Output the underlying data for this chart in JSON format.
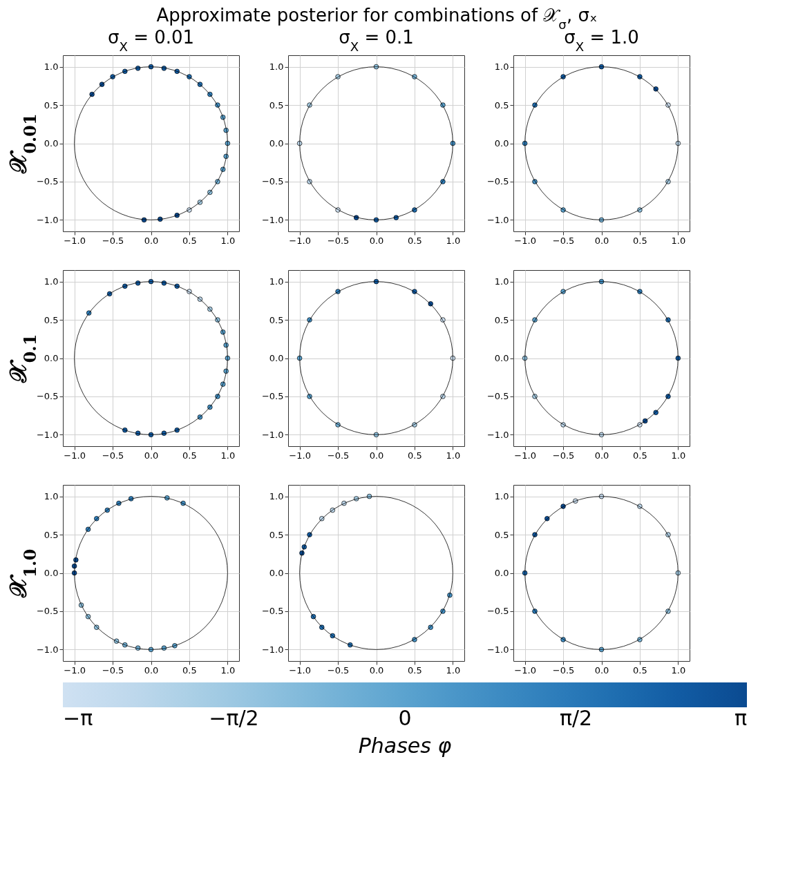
{
  "chart_data": [
    {
      "type": "other",
      "title": "Approximate posterior for combinations of 𝒳$_{σ}$, σₓ"
    },
    {
      "type": "scatter",
      "title": "σ$_{X}$ = 0.01",
      "ylabel": "𝒳$_{0.01}$",
      "xlim": [
        -1.15,
        1.15
      ],
      "ylim": [
        -1.15,
        1.15
      ],
      "xticks": [
        {
          "value": -1,
          "label": "−1.0"
        },
        {
          "value": -0.5,
          "label": "−0.5"
        },
        {
          "value": 0,
          "label": "0.0"
        },
        {
          "value": 0.5,
          "label": "0.5"
        },
        {
          "value": 1,
          "label": "1.0"
        }
      ],
      "yticks": [
        {
          "value": -1,
          "label": "−1.0"
        },
        {
          "value": -0.5,
          "label": "−0.5"
        },
        {
          "value": 0,
          "label": "0.0"
        },
        {
          "value": 0.5,
          "label": "0.5"
        },
        {
          "value": 1,
          "label": "1.0"
        }
      ],
      "grid": true,
      "series": [
        {
          "type": "scatter",
          "marker": "circle",
          "x": [
            -0.77,
            -0.64,
            -0.5,
            -0.34,
            -0.17,
            0,
            0.17,
            0.34,
            0.5,
            0.64,
            0.77,
            0.87,
            0.94,
            0.98,
            1,
            0.98,
            0.94,
            0.87,
            0.77,
            0.64,
            0.5,
            0.34,
            0.12,
            -0.09
          ],
          "values": [
            0.64,
            0.77,
            0.87,
            0.94,
            0.98,
            1,
            0.98,
            0.94,
            0.87,
            0.77,
            0.64,
            0.5,
            0.34,
            0.17,
            0,
            -0.17,
            -0.34,
            -0.5,
            -0.64,
            -0.77,
            -0.87,
            -0.94,
            -0.99,
            -1
          ],
          "colors": [
            "#0a4a90",
            "#0a4a90",
            "#125ca4",
            "#125ca4",
            "#125ca4",
            "#125ca4",
            "#125ca4",
            "#125ca4",
            "#206fb2",
            "#206fb2",
            "#3181bd",
            "#4592c6",
            "#5ba3cf",
            "#5ba3cf",
            "#5ba3cf",
            "#5ba3cf",
            "#5ba3cf",
            "#74b2d7",
            "#8fc1de",
            "#a8cee5",
            "#cfe1f2",
            "#0a4a90",
            "#0a4a90",
            "#0a4a90"
          ]
        }
      ]
    },
    {
      "type": "scatter",
      "title": "σ$_{X}$ = 0.1",
      "xlim": [
        -1.15,
        1.15
      ],
      "ylim": [
        -1.15,
        1.15
      ],
      "xticks": [
        {
          "value": -1,
          "label": "−1.0"
        },
        {
          "value": -0.5,
          "label": "−0.5"
        },
        {
          "value": 0,
          "label": "0.0"
        },
        {
          "value": 0.5,
          "label": "0.5"
        },
        {
          "value": 1,
          "label": "1.0"
        }
      ],
      "yticks": [
        {
          "value": -1,
          "label": "−1.0"
        },
        {
          "value": -0.5,
          "label": "−0.5"
        },
        {
          "value": 0,
          "label": "0.0"
        },
        {
          "value": 0.5,
          "label": "0.5"
        },
        {
          "value": 1,
          "label": "1.0"
        }
      ],
      "grid": true,
      "series": [
        {
          "type": "scatter",
          "marker": "circle",
          "x": [
            0,
            -0.5,
            -0.87,
            -1,
            -0.87,
            -0.5,
            -0.26,
            0,
            0.26,
            0.5,
            0.87,
            1,
            0.87,
            0.5
          ],
          "values": [
            1,
            0.87,
            0.5,
            0,
            -0.5,
            -0.87,
            -0.97,
            -1,
            -0.97,
            -0.87,
            -0.5,
            0,
            0.5,
            0.87
          ],
          "colors": [
            "#8fc1de",
            "#a8cee5",
            "#a8cee5",
            "#bed8ec",
            "#bed8ec",
            "#cfe1f2",
            "#0a4a90",
            "#125ca4",
            "#125ca4",
            "#206fb2",
            "#3181bd",
            "#4592c6",
            "#5ba3cf",
            "#74b2d7"
          ]
        }
      ]
    },
    {
      "type": "scatter",
      "title": "σ$_{X}$ = 1.0",
      "xlim": [
        -1.15,
        1.15
      ],
      "ylim": [
        -1.15,
        1.15
      ],
      "xticks": [
        {
          "value": -1,
          "label": "−1.0"
        },
        {
          "value": -0.5,
          "label": "−0.5"
        },
        {
          "value": 0,
          "label": "0.0"
        },
        {
          "value": 0.5,
          "label": "0.5"
        },
        {
          "value": 1,
          "label": "1.0"
        }
      ],
      "yticks": [
        {
          "value": -1,
          "label": "−1.0"
        },
        {
          "value": -0.5,
          "label": "−0.5"
        },
        {
          "value": 0,
          "label": "0.0"
        },
        {
          "value": 0.5,
          "label": "0.5"
        },
        {
          "value": 1,
          "label": "1.0"
        }
      ],
      "grid": true,
      "series": [
        {
          "type": "scatter",
          "marker": "circle",
          "x": [
            0,
            -0.5,
            -0.87,
            -1,
            -0.87,
            -0.5,
            0,
            0.5,
            0.87,
            1,
            0.87,
            0.71,
            0.5
          ],
          "values": [
            1,
            0.87,
            0.5,
            0,
            -0.5,
            -0.87,
            -1,
            -0.87,
            -0.5,
            0,
            0.5,
            0.71,
            0.87
          ],
          "colors": [
            "#125ca4",
            "#125ca4",
            "#206fb2",
            "#3181bd",
            "#4592c6",
            "#5ba3cf",
            "#74b2d7",
            "#8fc1de",
            "#a8cee5",
            "#bed8ec",
            "#cfe1f2",
            "#0a4a90",
            "#125ca4"
          ]
        }
      ]
    },
    {
      "type": "scatter",
      "ylabel": "𝒳$_{0.1}$",
      "xlim": [
        -1.15,
        1.15
      ],
      "ylim": [
        -1.15,
        1.15
      ],
      "xticks": [
        {
          "value": -1,
          "label": "−1.0"
        },
        {
          "value": -0.5,
          "label": "−0.5"
        },
        {
          "value": 0,
          "label": "0.0"
        },
        {
          "value": 0.5,
          "label": "0.5"
        },
        {
          "value": 1,
          "label": "1.0"
        }
      ],
      "yticks": [
        {
          "value": -1,
          "label": "−1.0"
        },
        {
          "value": -0.5,
          "label": "−0.5"
        },
        {
          "value": 0,
          "label": "0.0"
        },
        {
          "value": 0.5,
          "label": "0.5"
        },
        {
          "value": 1,
          "label": "1.0"
        }
      ],
      "grid": true,
      "series": [
        {
          "type": "scatter",
          "marker": "circle",
          "x": [
            -0.81,
            -0.54,
            -0.34,
            -0.17,
            0,
            0.17,
            0.34,
            0.5,
            0.64,
            0.77,
            0.87,
            0.94,
            0.98,
            1,
            0.98,
            0.94,
            0.87,
            0.77,
            0.64,
            0.34,
            0.17,
            0,
            -0.17,
            -0.34
          ],
          "values": [
            0.59,
            0.84,
            0.94,
            0.98,
            1,
            0.98,
            0.94,
            0.87,
            0.77,
            0.64,
            0.5,
            0.34,
            0.17,
            0,
            -0.17,
            -0.34,
            -0.5,
            -0.64,
            -0.77,
            -0.94,
            -0.98,
            -1,
            -0.98,
            -0.94
          ],
          "colors": [
            "#3181bd",
            "#125ca4",
            "#125ca4",
            "#125ca4",
            "#125ca4",
            "#125ca4",
            "#125ca4",
            "#cfe1f2",
            "#bed8ec",
            "#a8cee5",
            "#8fc1de",
            "#5ba3cf",
            "#5ba3cf",
            "#5ba3cf",
            "#5ba3cf",
            "#5ba3cf",
            "#4592c6",
            "#4592c6",
            "#4592c6",
            "#125ca4",
            "#125ca4",
            "#125ca4",
            "#125ca4",
            "#125ca4"
          ]
        }
      ]
    },
    {
      "type": "scatter",
      "xlim": [
        -1.15,
        1.15
      ],
      "ylim": [
        -1.15,
        1.15
      ],
      "xticks": [
        {
          "value": -1,
          "label": "−1.0"
        },
        {
          "value": -0.5,
          "label": "−0.5"
        },
        {
          "value": 0,
          "label": "0.0"
        },
        {
          "value": 0.5,
          "label": "0.5"
        },
        {
          "value": 1,
          "label": "1.0"
        }
      ],
      "yticks": [
        {
          "value": -1,
          "label": "−1.0"
        },
        {
          "value": -0.5,
          "label": "−0.5"
        },
        {
          "value": 0,
          "label": "0.0"
        },
        {
          "value": 0.5,
          "label": "0.5"
        },
        {
          "value": 1,
          "label": "1.0"
        }
      ],
      "grid": true,
      "series": [
        {
          "type": "scatter",
          "marker": "circle",
          "x": [
            0,
            0.5,
            0.71,
            0.87,
            1,
            0.87,
            0.5,
            0,
            -0.5,
            -0.87,
            -1,
            -0.87,
            -0.5
          ],
          "values": [
            1,
            0.87,
            0.71,
            0.5,
            0,
            -0.5,
            -0.87,
            -1,
            -0.87,
            -0.5,
            0,
            0.5,
            0.87
          ],
          "colors": [
            "#125ca4",
            "#125ca4",
            "#0a4a90",
            "#cfe1f2",
            "#cfe1f2",
            "#bed8ec",
            "#a8cee5",
            "#8fc1de",
            "#74b2d7",
            "#5ba3cf",
            "#5ba3cf",
            "#4592c6",
            "#3181bd"
          ]
        }
      ]
    },
    {
      "type": "scatter",
      "xlim": [
        -1.15,
        1.15
      ],
      "ylim": [
        -1.15,
        1.15
      ],
      "xticks": [
        {
          "value": -1,
          "label": "−1.0"
        },
        {
          "value": -0.5,
          "label": "−0.5"
        },
        {
          "value": 0,
          "label": "0.0"
        },
        {
          "value": 0.5,
          "label": "0.5"
        },
        {
          "value": 1,
          "label": "1.0"
        }
      ],
      "yticks": [
        {
          "value": -1,
          "label": "−1.0"
        },
        {
          "value": -0.5,
          "label": "−0.5"
        },
        {
          "value": 0,
          "label": "0.0"
        },
        {
          "value": 0.5,
          "label": "0.5"
        },
        {
          "value": 1,
          "label": "1.0"
        }
      ],
      "grid": true,
      "series": [
        {
          "type": "scatter",
          "marker": "circle",
          "x": [
            0,
            0.5,
            0.87,
            1,
            0.87,
            0.71,
            0.57,
            0.5,
            0,
            -0.5,
            -0.87,
            -1,
            -0.87,
            -0.5
          ],
          "values": [
            1,
            0.87,
            0.5,
            0,
            -0.5,
            -0.71,
            -0.82,
            -0.87,
            -1,
            -0.87,
            -0.5,
            0,
            0.5,
            0.87
          ],
          "colors": [
            "#4592c6",
            "#3181bd",
            "#206fb2",
            "#125ca4",
            "#125ca4",
            "#125ca4",
            "#0a4a90",
            "#cfe1f2",
            "#bed8ec",
            "#bed8ec",
            "#a8cee5",
            "#8fc1de",
            "#5ba3cf",
            "#5ba3cf"
          ]
        }
      ]
    },
    {
      "type": "scatter",
      "ylabel": "𝒳$_{1.0}$",
      "xlim": [
        -1.15,
        1.15
      ],
      "ylim": [
        -1.15,
        1.15
      ],
      "xticks": [
        {
          "value": -1,
          "label": "−1.0"
        },
        {
          "value": -0.5,
          "label": "−0.5"
        },
        {
          "value": 0,
          "label": "0.0"
        },
        {
          "value": 0.5,
          "label": "0.5"
        },
        {
          "value": 1,
          "label": "1.0"
        }
      ],
      "yticks": [
        {
          "value": -1,
          "label": "−1.0"
        },
        {
          "value": -0.5,
          "label": "−0.5"
        },
        {
          "value": 0,
          "label": "0.0"
        },
        {
          "value": 0.5,
          "label": "0.5"
        },
        {
          "value": 1,
          "label": "1.0"
        }
      ],
      "grid": true,
      "series": [
        {
          "type": "scatter",
          "marker": "circle",
          "x": [
            -0.82,
            -0.71,
            -0.57,
            -0.42,
            -0.26,
            0.21,
            0.42,
            -1,
            -1,
            -0.98,
            -0.91,
            -0.82,
            -0.71,
            -0.45,
            -0.34,
            -0.17,
            0,
            0.17,
            0.31
          ],
          "values": [
            0.57,
            0.71,
            0.82,
            0.91,
            0.97,
            0.98,
            0.91,
            0,
            0.09,
            0.17,
            -0.42,
            -0.57,
            -0.71,
            -0.89,
            -0.94,
            -0.98,
            -1,
            -0.98,
            -0.95
          ],
          "colors": [
            "#3181bd",
            "#3181bd",
            "#3181bd",
            "#3181bd",
            "#3181bd",
            "#5ba3cf",
            "#4592c6",
            "#0a4a90",
            "#0a4a90",
            "#0a4a90",
            "#8fc1de",
            "#8fc1de",
            "#8fc1de",
            "#8fc1de",
            "#74b2d7",
            "#74b2d7",
            "#5ba3cf",
            "#5ba3cf",
            "#5ba3cf"
          ]
        }
      ]
    },
    {
      "type": "scatter",
      "xlim": [
        -1.15,
        1.15
      ],
      "ylim": [
        -1.15,
        1.15
      ],
      "xticks": [
        {
          "value": -1,
          "label": "−1.0"
        },
        {
          "value": -0.5,
          "label": "−0.5"
        },
        {
          "value": 0,
          "label": "0.0"
        },
        {
          "value": 0.5,
          "label": "0.5"
        },
        {
          "value": 1,
          "label": "1.0"
        }
      ],
      "yticks": [
        {
          "value": -1,
          "label": "−1.0"
        },
        {
          "value": -0.5,
          "label": "−0.5"
        },
        {
          "value": 0,
          "label": "0.0"
        },
        {
          "value": 0.5,
          "label": "0.5"
        },
        {
          "value": 1,
          "label": "1.0"
        }
      ],
      "grid": true,
      "series": [
        {
          "type": "scatter",
          "marker": "circle",
          "x": [
            -0.09,
            -0.26,
            -0.42,
            -0.57,
            -0.71,
            -0.87,
            -0.94,
            -0.97,
            -0.82,
            -0.71,
            -0.57,
            -0.34,
            0.5,
            0.71,
            0.87,
            0.96
          ],
          "values": [
            1,
            0.97,
            0.91,
            0.82,
            0.71,
            0.5,
            0.34,
            0.26,
            -0.57,
            -0.71,
            -0.82,
            -0.94,
            -0.87,
            -0.71,
            -0.5,
            -0.29
          ],
          "colors": [
            "#8fc1de",
            "#a8cee5",
            "#bed8ec",
            "#bed8ec",
            "#bed8ec",
            "#125ca4",
            "#125ca4",
            "#0a4a90",
            "#206fb2",
            "#206fb2",
            "#206fb2",
            "#206fb2",
            "#4592c6",
            "#4592c6",
            "#4592c6",
            "#4592c6"
          ]
        }
      ]
    },
    {
      "type": "scatter",
      "xlim": [
        -1.15,
        1.15
      ],
      "ylim": [
        -1.15,
        1.15
      ],
      "xticks": [
        {
          "value": -1,
          "label": "−1.0"
        },
        {
          "value": -0.5,
          "label": "−0.5"
        },
        {
          "value": 0,
          "label": "0.0"
        },
        {
          "value": 0.5,
          "label": "0.5"
        },
        {
          "value": 1,
          "label": "1.0"
        }
      ],
      "yticks": [
        {
          "value": -1,
          "label": "−1.0"
        },
        {
          "value": -0.5,
          "label": "−0.5"
        },
        {
          "value": 0,
          "label": "0.0"
        },
        {
          "value": 0.5,
          "label": "0.5"
        },
        {
          "value": 1,
          "label": "1.0"
        }
      ],
      "grid": true,
      "clabel": "Phases φ",
      "clim": [
        -3.1416,
        3.1416
      ],
      "cticks": [
        {
          "value": -3.1416,
          "label": "−π"
        },
        {
          "value": -1.5708,
          "label": "−π/2"
        },
        {
          "value": 0,
          "label": "0"
        },
        {
          "value": 1.5708,
          "label": "π/2"
        },
        {
          "value": 3.1416,
          "label": "π"
        }
      ],
      "series": [
        {
          "type": "scatter",
          "marker": "circle",
          "x": [
            0,
            0.5,
            0.87,
            1,
            0.87,
            0.5,
            0,
            -0.5,
            -0.87,
            -1,
            -0.87,
            -0.71,
            -0.5,
            -0.34
          ],
          "values": [
            1,
            0.87,
            0.5,
            0,
            -0.5,
            -0.87,
            -1,
            -0.87,
            -0.5,
            0,
            0.5,
            0.71,
            0.87,
            0.94
          ],
          "cvalues": [
            -2.8,
            -2.5,
            -2.2,
            -1.8,
            -1.3,
            -0.8,
            0.0,
            0.8,
            1.5,
            2.2,
            2.7,
            3.0,
            3.1,
            -3.0
          ]
        }
      ]
    }
  ]
}
